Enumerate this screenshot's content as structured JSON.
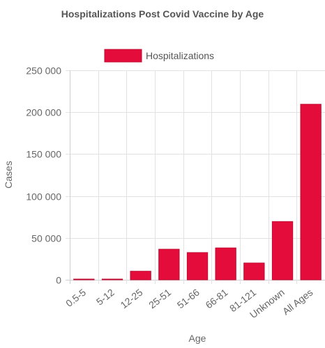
{
  "chart_data": {
    "type": "bar",
    "title": "Hospitalizations Post Covid Vaccine by Age",
    "xlabel": "Age",
    "ylabel": "Cases",
    "categories": [
      "0.5-5",
      "5-12",
      "12-25",
      "25-51",
      "51-66",
      "66-81",
      "81-121",
      "Unknown",
      "All Ages"
    ],
    "series": [
      {
        "name": "Hospitalizations",
        "values": [
          300,
          400,
          10200,
          36500,
          32500,
          38000,
          20000,
          69500,
          209500
        ]
      }
    ],
    "ylim": [
      0,
      250000
    ],
    "yticks": [
      0,
      50000,
      100000,
      150000,
      200000,
      250000
    ],
    "ytick_labels": [
      "0",
      "50 000",
      "100 000",
      "150 000",
      "200 000",
      "250 000"
    ],
    "grid": true,
    "legend_position": "top",
    "colors": {
      "bar_fill": "#e30c3a",
      "bar_border": "#c20a32"
    }
  }
}
